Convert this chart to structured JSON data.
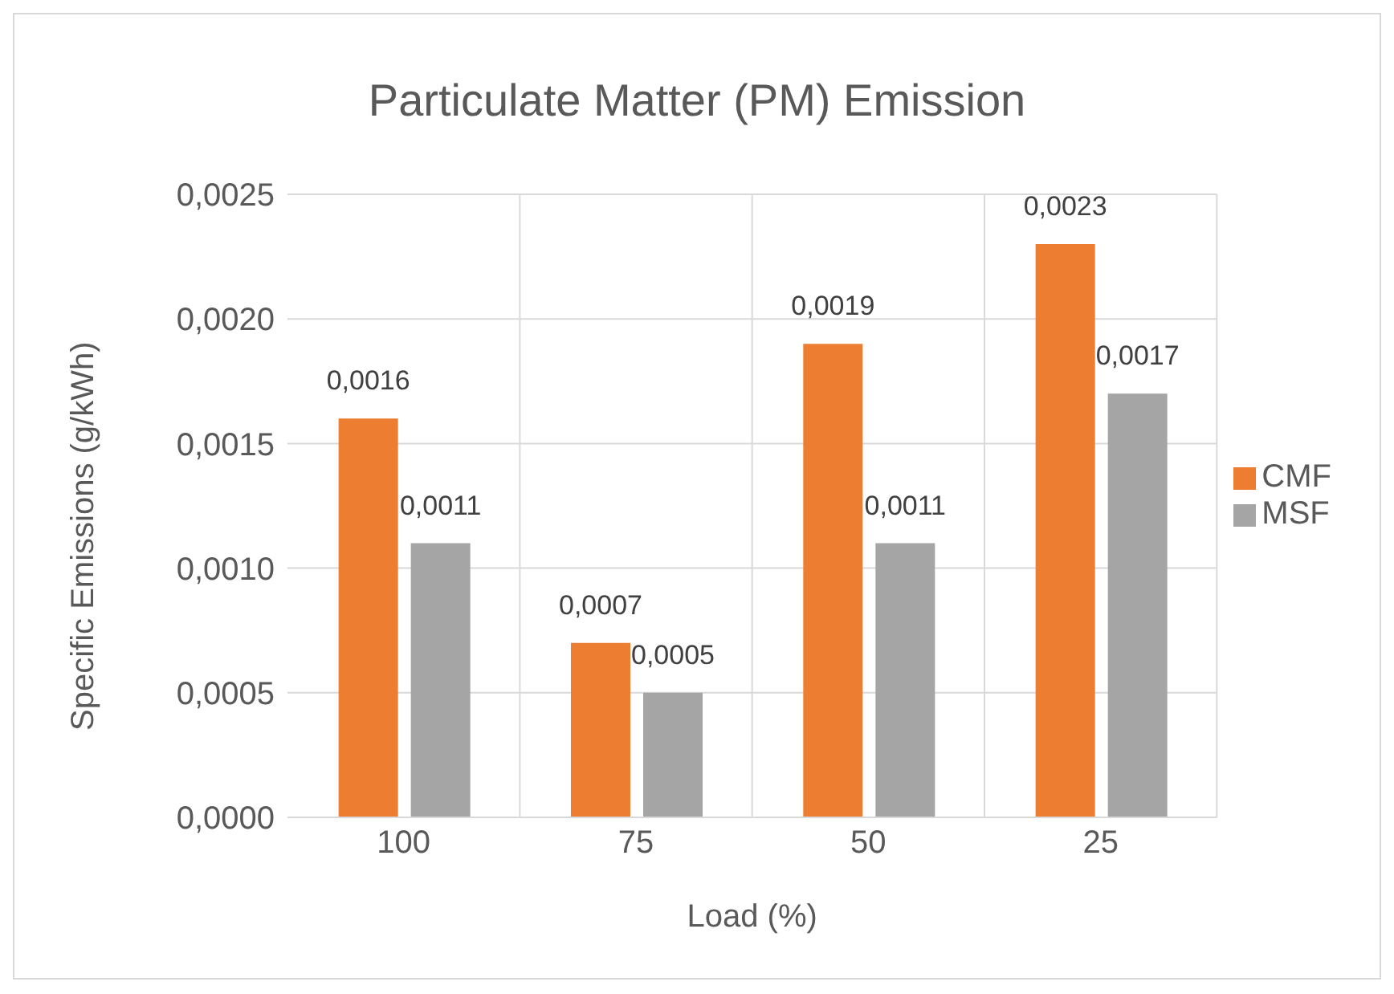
{
  "chart_data": {
    "type": "bar",
    "title": "Particulate Matter (PM) Emission",
    "xlabel": "Load (%)",
    "ylabel": "Specific Emissions (g/kWh)",
    "categories": [
      "100",
      "75",
      "50",
      "25"
    ],
    "series": [
      {
        "name": "CMF",
        "color": "#ed7d31",
        "values": [
          0.0016,
          0.0007,
          0.0019,
          0.0023
        ],
        "value_labels": [
          "0,0016",
          "0,0007",
          "0,0019",
          "0,0023"
        ]
      },
      {
        "name": "MSF",
        "color": "#a5a5a5",
        "values": [
          0.0011,
          0.0005,
          0.0011,
          0.0017
        ],
        "value_labels": [
          "0,0011",
          "0,0005",
          "0,0011",
          "0,0017"
        ]
      }
    ],
    "ylim": [
      0,
      0.0025
    ],
    "yticks": [
      {
        "value": 0,
        "label": "0,0000"
      },
      {
        "value": 0.0005,
        "label": "0,0005"
      },
      {
        "value": 0.001,
        "label": "0,0010"
      },
      {
        "value": 0.0015,
        "label": "0,0015"
      },
      {
        "value": 0.002,
        "label": "0,0020"
      },
      {
        "value": 0.0025,
        "label": "0,0025"
      }
    ],
    "grid": true,
    "legend": "right"
  }
}
